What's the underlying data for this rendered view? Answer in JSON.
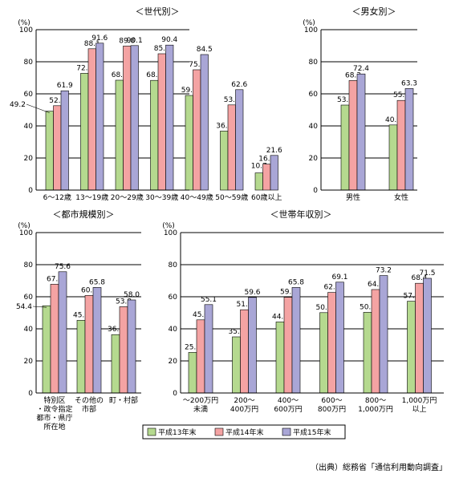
{
  "legend": [
    "平成13年末",
    "平成14年末",
    "平成15年末"
  ],
  "colors": [
    "#b5d98f",
    "#f4a3a3",
    "#a9a6d6"
  ],
  "source": "（出典）総務省「通信利用動向調査」",
  "chart_data": [
    {
      "type": "bar",
      "title": "＜世代別＞",
      "unit": "(%)",
      "ylim": [
        0,
        100
      ],
      "yticks": [
        0,
        20,
        40,
        60,
        80,
        100
      ],
      "categories": [
        [
          "6～12歳"
        ],
        [
          "13～19歳"
        ],
        [
          "20～29歳"
        ],
        [
          "30～39歳"
        ],
        [
          "40～49歳"
        ],
        [
          "50～59歳"
        ],
        [
          "60歳以上"
        ]
      ],
      "series": [
        {
          "name": "平成13年末",
          "values": [
            49.2,
            72.8,
            68.5,
            68.4,
            59.0,
            36.8,
            10.7
          ]
        },
        {
          "name": "平成14年末",
          "values": [
            52.6,
            88.1,
            89.8,
            85.0,
            75.0,
            53.1,
            16.2
          ]
        },
        {
          "name": "平成15年末",
          "values": [
            61.9,
            91.6,
            90.1,
            90.4,
            84.5,
            62.6,
            21.6
          ]
        }
      ]
    },
    {
      "type": "bar",
      "title": "＜男女別＞",
      "unit": "(%)",
      "ylim": [
        0,
        100
      ],
      "yticks": [
        0,
        20,
        40,
        60,
        80,
        100
      ],
      "categories": [
        [
          "男性"
        ],
        [
          "女性"
        ]
      ],
      "series": [
        {
          "name": "平成13年末",
          "values": [
            53.0,
            40.6
          ]
        },
        {
          "name": "平成14年末",
          "values": [
            68.3,
            55.9
          ]
        },
        {
          "name": "平成15年末",
          "values": [
            72.4,
            63.3
          ]
        }
      ]
    },
    {
      "type": "bar",
      "title": "＜都市規模別＞",
      "unit": "(%)",
      "ylim": [
        0,
        100
      ],
      "yticks": [
        0,
        20,
        40,
        60,
        80,
        100
      ],
      "categories": [
        [
          "特別区",
          "・政令指定",
          "都市・県庁",
          "所在地"
        ],
        [
          "その他の",
          "市部"
        ],
        [
          "町・村部"
        ]
      ],
      "series": [
        {
          "name": "平成13年末",
          "values": [
            54.4,
            45.3,
            36.4
          ]
        },
        {
          "name": "平成14年末",
          "values": [
            67.8,
            60.8,
            53.8
          ]
        },
        {
          "name": "平成15年末",
          "values": [
            75.6,
            65.8,
            58.0
          ]
        }
      ]
    },
    {
      "type": "bar",
      "title": "＜世帯年収別＞",
      "unit": "(%)",
      "ylim": [
        0,
        100
      ],
      "yticks": [
        0,
        20,
        40,
        60,
        80,
        100
      ],
      "categories": [
        [
          "～200万円",
          "未満"
        ],
        [
          "200～",
          "400万円"
        ],
        [
          "400～",
          "600万円"
        ],
        [
          "600～",
          "800万円"
        ],
        [
          "800～",
          "1,000万円"
        ],
        [
          "1,000万円",
          "以上"
        ]
      ],
      "series": [
        {
          "name": "平成13年末",
          "values": [
            25.3,
            35.0,
            44.3,
            50.1,
            50.3,
            57.2
          ]
        },
        {
          "name": "平成14年末",
          "values": [
            45.6,
            51.9,
            59.7,
            62.7,
            64.5,
            68.4
          ]
        },
        {
          "name": "平成15年末",
          "values": [
            55.1,
            59.6,
            65.8,
            69.1,
            73.2,
            71.5
          ]
        }
      ]
    }
  ]
}
